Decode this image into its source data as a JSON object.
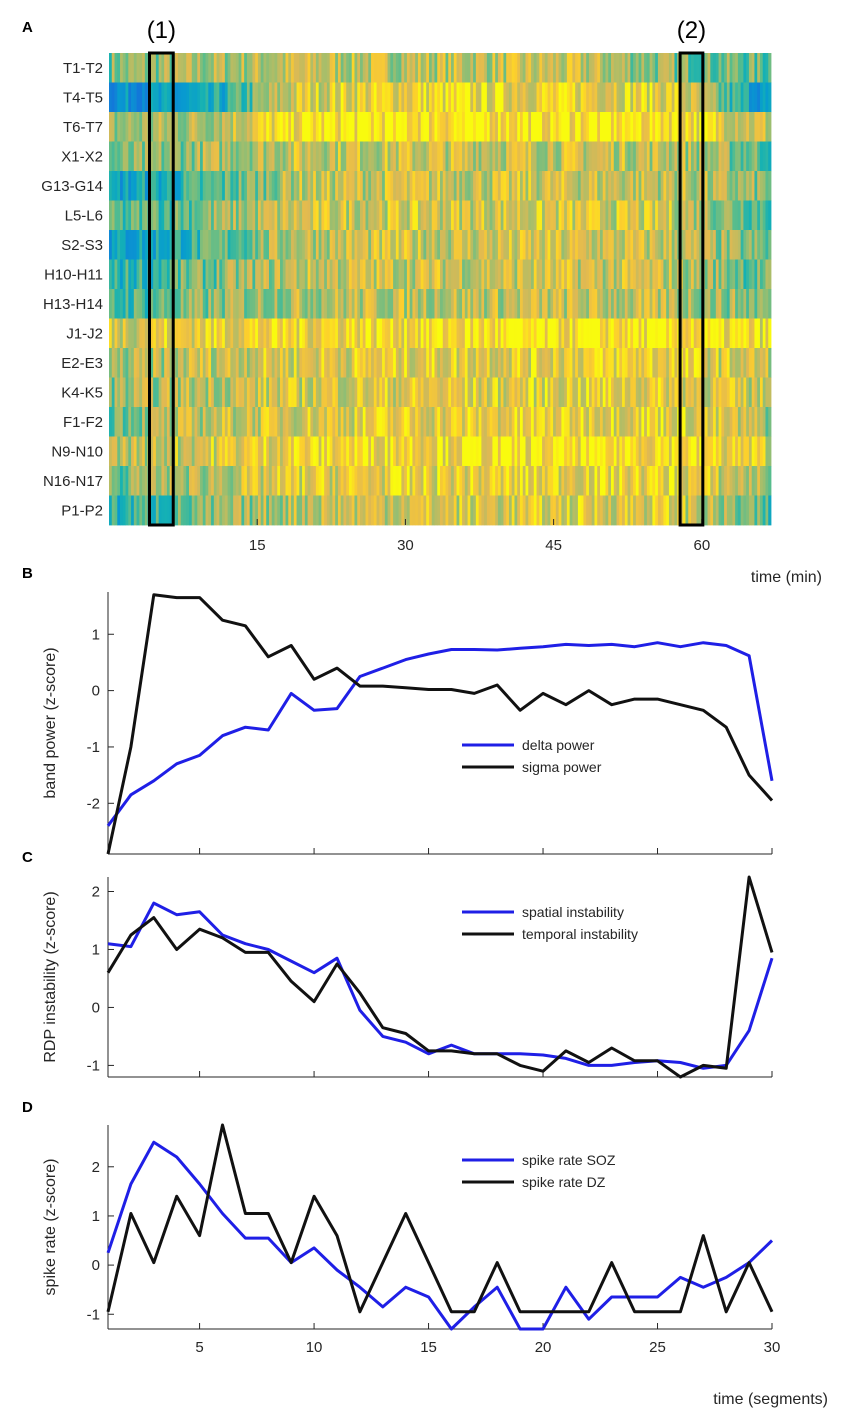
{
  "colors": {
    "blue": "#1f1fe6",
    "black": "#111111"
  },
  "chart_data": [
    {
      "panel": "A",
      "type": "heatmap",
      "xlabel": "time (min)",
      "xlim": [
        0,
        67
      ],
      "xticks": [
        15,
        30,
        45,
        60
      ],
      "rows": [
        "T1-T2",
        "T4-T5",
        "T6-T7",
        "X1-X2",
        "G13-G14",
        "L5-L6",
        "S2-S3",
        "H10-H11",
        "H13-H14",
        "J1-J2",
        "E2-E3",
        "K4-K5",
        "F1-F2",
        "N9-N10",
        "N16-N17",
        "P1-P2"
      ],
      "colormap": "parula",
      "annotations": [
        {
          "label": "(1)",
          "x_range": [
            4.1,
            6.5
          ]
        },
        {
          "label": "(2)",
          "x_range": [
            57.8,
            60.1
          ]
        }
      ],
      "row_value_pattern": [
        [
          0.7,
          0.75,
          0.8,
          0.8,
          0.8,
          0.8,
          0.7,
          0.65
        ],
        [
          0.4,
          0.45,
          0.85,
          0.9,
          0.9,
          0.9,
          0.88,
          0.4
        ],
        [
          0.72,
          0.78,
          0.95,
          0.97,
          0.97,
          0.97,
          0.97,
          0.8
        ],
        [
          0.65,
          0.75,
          0.82,
          0.82,
          0.82,
          0.82,
          0.8,
          0.65
        ],
        [
          0.45,
          0.6,
          0.8,
          0.82,
          0.82,
          0.82,
          0.8,
          0.7
        ],
        [
          0.6,
          0.7,
          0.82,
          0.84,
          0.84,
          0.84,
          0.82,
          0.65
        ],
        [
          0.45,
          0.6,
          0.8,
          0.82,
          0.82,
          0.82,
          0.8,
          0.65
        ],
        [
          0.55,
          0.68,
          0.8,
          0.82,
          0.82,
          0.82,
          0.8,
          0.65
        ],
        [
          0.6,
          0.7,
          0.78,
          0.8,
          0.8,
          0.8,
          0.78,
          0.7
        ],
        [
          0.85,
          0.9,
          0.92,
          0.94,
          0.94,
          0.95,
          0.95,
          0.9
        ],
        [
          0.72,
          0.82,
          0.86,
          0.88,
          0.88,
          0.9,
          0.9,
          0.8
        ],
        [
          0.72,
          0.8,
          0.84,
          0.86,
          0.86,
          0.88,
          0.88,
          0.8
        ],
        [
          0.7,
          0.8,
          0.86,
          0.88,
          0.88,
          0.9,
          0.9,
          0.75
        ],
        [
          0.78,
          0.85,
          0.92,
          0.94,
          0.94,
          0.95,
          0.95,
          0.85
        ],
        [
          0.68,
          0.78,
          0.86,
          0.88,
          0.88,
          0.9,
          0.9,
          0.75
        ],
        [
          0.55,
          0.68,
          0.8,
          0.84,
          0.84,
          0.86,
          0.86,
          0.6
        ]
      ]
    },
    {
      "panel": "B",
      "type": "line",
      "ylabel": "band power (z-score)",
      "xlim": [
        1,
        30
      ],
      "ylim": [
        -2.9,
        1.75
      ],
      "xticks": [
        5,
        10,
        15,
        20,
        25,
        30
      ],
      "yticks": [
        -2,
        -1,
        0,
        1
      ],
      "show_xtick_labels": false,
      "legend_position": "lower-right",
      "x": [
        1,
        2,
        3,
        4,
        5,
        6,
        7,
        8,
        9,
        10,
        11,
        12,
        13,
        14,
        15,
        16,
        17,
        18,
        19,
        20,
        21,
        22,
        23,
        24,
        25,
        26,
        27,
        28,
        29,
        30
      ],
      "series": [
        {
          "name": "delta power",
          "color": "blue",
          "values": [
            -2.4,
            -1.85,
            -1.6,
            -1.3,
            -1.15,
            -0.8,
            -0.65,
            -0.7,
            -0.05,
            -0.35,
            -0.32,
            0.25,
            0.4,
            0.55,
            0.65,
            0.73,
            0.73,
            0.72,
            0.75,
            0.78,
            0.82,
            0.8,
            0.82,
            0.78,
            0.85,
            0.78,
            0.85,
            0.8,
            0.62,
            -1.6
          ]
        },
        {
          "name": "sigma power",
          "color": "black",
          "values": [
            -2.9,
            -1.0,
            1.7,
            1.65,
            1.65,
            1.25,
            1.15,
            0.6,
            0.8,
            0.2,
            0.4,
            0.08,
            0.08,
            0.05,
            0.02,
            0.02,
            -0.05,
            0.1,
            -0.35,
            -0.05,
            -0.25,
            0.0,
            -0.25,
            -0.15,
            -0.15,
            -0.25,
            -0.35,
            -0.65,
            -1.5,
            -1.95
          ]
        }
      ]
    },
    {
      "panel": "C",
      "type": "line",
      "ylabel": "RDP instability (z-score)",
      "xlim": [
        1,
        30
      ],
      "ylim": [
        -1.2,
        2.25
      ],
      "xticks": [
        5,
        10,
        15,
        20,
        25,
        30
      ],
      "yticks": [
        -1,
        0,
        1,
        2
      ],
      "show_xtick_labels": false,
      "legend_position": "top-right",
      "x": [
        1,
        2,
        3,
        4,
        5,
        6,
        7,
        8,
        9,
        10,
        11,
        12,
        13,
        14,
        15,
        16,
        17,
        18,
        19,
        20,
        21,
        22,
        23,
        24,
        25,
        26,
        27,
        28,
        29,
        30
      ],
      "series": [
        {
          "name": "spatial instability",
          "color": "blue",
          "values": [
            1.1,
            1.05,
            1.8,
            1.6,
            1.65,
            1.25,
            1.1,
            1.0,
            0.8,
            0.6,
            0.85,
            -0.05,
            -0.5,
            -0.6,
            -0.8,
            -0.65,
            -0.8,
            -0.8,
            -0.8,
            -0.82,
            -0.88,
            -1.0,
            -1.0,
            -0.95,
            -0.92,
            -0.95,
            -1.05,
            -1.0,
            -0.4,
            0.85
          ]
        },
        {
          "name": "temporal instability",
          "color": "black",
          "values": [
            0.6,
            1.25,
            1.55,
            1.0,
            1.35,
            1.2,
            0.95,
            0.95,
            0.45,
            0.1,
            0.75,
            0.25,
            -0.35,
            -0.45,
            -0.75,
            -0.75,
            -0.8,
            -0.8,
            -1.0,
            -1.1,
            -0.75,
            -0.95,
            -0.7,
            -0.92,
            -0.92,
            -1.2,
            -1.0,
            -1.05,
            2.25,
            0.95
          ]
        }
      ]
    },
    {
      "panel": "D",
      "type": "line",
      "ylabel": "spike rate (z-score)",
      "xlabel": "time (segments)",
      "xlim": [
        1,
        30
      ],
      "ylim": [
        -1.3,
        2.85
      ],
      "xticks": [
        5,
        10,
        15,
        20,
        25,
        30
      ],
      "yticks": [
        -1,
        0,
        1,
        2
      ],
      "show_xtick_labels": true,
      "legend_position": "top-right",
      "x": [
        1,
        2,
        3,
        4,
        5,
        6,
        7,
        8,
        9,
        10,
        11,
        12,
        13,
        14,
        15,
        16,
        17,
        18,
        19,
        20,
        21,
        22,
        23,
        24,
        25,
        26,
        27,
        28,
        29,
        30
      ],
      "series": [
        {
          "name": "spike rate SOZ",
          "color": "blue",
          "values": [
            0.25,
            1.65,
            2.5,
            2.2,
            1.65,
            1.05,
            0.55,
            0.55,
            0.05,
            0.35,
            -0.1,
            -0.45,
            -0.85,
            -0.45,
            -0.65,
            -1.3,
            -0.85,
            -0.45,
            -1.3,
            -1.3,
            -0.45,
            -1.1,
            -0.65,
            -0.65,
            -0.65,
            -0.25,
            -0.45,
            -0.25,
            0.05,
            0.5
          ]
        },
        {
          "name": "spike rate DZ",
          "color": "black",
          "values": [
            -0.95,
            1.05,
            0.05,
            1.4,
            0.6,
            2.85,
            1.05,
            1.05,
            0.05,
            1.4,
            0.6,
            -0.95,
            0.05,
            1.05,
            0.05,
            -0.95,
            -0.95,
            0.05,
            -0.95,
            -0.95,
            -0.95,
            -0.95,
            0.05,
            -0.95,
            -0.95,
            -0.95,
            0.6,
            -0.95,
            0.05,
            -0.95
          ]
        }
      ]
    }
  ]
}
